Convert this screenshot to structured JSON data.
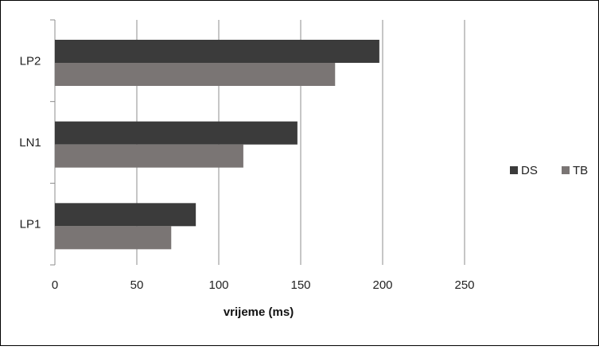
{
  "chart_data": {
    "type": "bar",
    "orientation": "horizontal",
    "categories": [
      "LP2",
      "LN1",
      "LP1"
    ],
    "series": [
      {
        "name": "DS",
        "values": [
          198,
          148,
          86
        ],
        "color": "#3b3b3b"
      },
      {
        "name": "TB",
        "values": [
          171,
          115,
          71
        ],
        "color": "#7a7574"
      }
    ],
    "x_ticks": [
      "0",
      "50",
      "100",
      "150",
      "200",
      "250"
    ],
    "xlabel": "vrijeme (ms)",
    "ylabel": "",
    "title": "",
    "xlim": [
      0,
      250
    ],
    "grid": "vertical",
    "legend_position": "right"
  }
}
